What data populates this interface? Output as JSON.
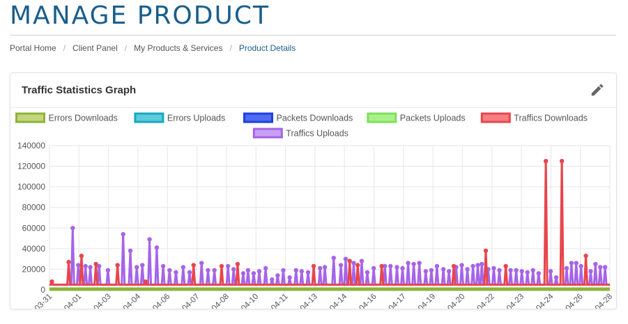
{
  "header": {
    "title": "MANAGE PRODUCT"
  },
  "breadcrumb": {
    "items": [
      {
        "label": "Portal Home"
      },
      {
        "label": "Client Panel"
      },
      {
        "label": "My Products & Services"
      },
      {
        "label": "Product Details"
      }
    ]
  },
  "card": {
    "title": "Traffic Statistics Graph",
    "edit_icon": "pencil-icon"
  },
  "colors": {
    "title": "#1a5e8c",
    "grid": "#e6e6e6"
  },
  "chart_data": {
    "type": "line",
    "grid": true,
    "legend_position": "top",
    "ylim": [
      0,
      140000
    ],
    "yticks": [
      0,
      20000,
      40000,
      60000,
      80000,
      100000,
      120000,
      140000
    ],
    "xticks": [
      "2019-03-31",
      "2019-04-01",
      "2019-04-03",
      "2019-04-04",
      "2019-04-06",
      "2019-04-07",
      "2019-04-08",
      "2019-04-10",
      "2019-04-11",
      "2019-04-13",
      "2019-04-14",
      "2019-04-16",
      "2019-04-17",
      "2019-04-19",
      "2019-04-20",
      "2019-04-22",
      "2019-04-23",
      "2019-04-24",
      "2019-04-26",
      "2019-04-28"
    ],
    "series": [
      {
        "name": "Errors Downloads",
        "color": "#8db33a",
        "fill": "#c3d67e",
        "values": "zero"
      },
      {
        "name": "Errors Uploads",
        "color": "#16a9c0",
        "fill": "#5ecbdb",
        "values": "zero"
      },
      {
        "name": "Packets Downloads",
        "color": "#1f3fe0",
        "fill": "#4f6cf0",
        "values": "zero"
      },
      {
        "name": "Packets Uploads",
        "color": "#7fe05a",
        "fill": "#a8f08a",
        "values": "zero"
      },
      {
        "name": "Traffics Downloads",
        "color": "#e8454d",
        "fill": "#f47f84",
        "values": [
          {
            "x": 0.3,
            "y": 8000
          },
          {
            "x": 2.4,
            "y": 27000
          },
          {
            "x": 4.0,
            "y": 33000
          },
          {
            "x": 5.8,
            "y": 25000
          },
          {
            "x": 8.5,
            "y": 24000
          },
          {
            "x": 12.0,
            "y": 8000
          },
          {
            "x": 18.0,
            "y": 24000
          },
          {
            "x": 21.5,
            "y": 23000
          },
          {
            "x": 23.5,
            "y": 25000
          },
          {
            "x": 33.0,
            "y": 23000
          },
          {
            "x": 37.5,
            "y": 28000
          },
          {
            "x": 38.5,
            "y": 24000
          },
          {
            "x": 41.5,
            "y": 23000
          },
          {
            "x": 50.5,
            "y": 23000
          },
          {
            "x": 54.5,
            "y": 38000
          },
          {
            "x": 57.0,
            "y": 23000
          },
          {
            "x": 62.0,
            "y": 125000
          },
          {
            "x": 64.0,
            "y": 125000
          },
          {
            "x": 67.0,
            "y": 33000
          }
        ]
      },
      {
        "name": "Traffics Uploads",
        "color": "#a664e8",
        "fill": "#c7a2f2",
        "values": [
          {
            "x": 2.9,
            "y": 60000
          },
          {
            "x": 3.6,
            "y": 24000
          },
          {
            "x": 4.5,
            "y": 23000
          },
          {
            "x": 5.1,
            "y": 22000
          },
          {
            "x": 6.2,
            "y": 23000
          },
          {
            "x": 7.3,
            "y": 19000
          },
          {
            "x": 9.2,
            "y": 54000
          },
          {
            "x": 10.1,
            "y": 38000
          },
          {
            "x": 10.9,
            "y": 22000
          },
          {
            "x": 11.6,
            "y": 24000
          },
          {
            "x": 12.5,
            "y": 49000
          },
          {
            "x": 13.4,
            "y": 41000
          },
          {
            "x": 14.2,
            "y": 23000
          },
          {
            "x": 15.0,
            "y": 19000
          },
          {
            "x": 15.8,
            "y": 17000
          },
          {
            "x": 16.7,
            "y": 22000
          },
          {
            "x": 17.5,
            "y": 17000
          },
          {
            "x": 19.0,
            "y": 26000
          },
          {
            "x": 19.8,
            "y": 19000
          },
          {
            "x": 20.6,
            "y": 19000
          },
          {
            "x": 22.3,
            "y": 23000
          },
          {
            "x": 23.0,
            "y": 20000
          },
          {
            "x": 24.2,
            "y": 16000
          },
          {
            "x": 24.8,
            "y": 19000
          },
          {
            "x": 25.5,
            "y": 16000
          },
          {
            "x": 26.2,
            "y": 18000
          },
          {
            "x": 27.0,
            "y": 21000
          },
          {
            "x": 27.8,
            "y": 10000
          },
          {
            "x": 28.5,
            "y": 14000
          },
          {
            "x": 29.2,
            "y": 19000
          },
          {
            "x": 30.0,
            "y": 12000
          },
          {
            "x": 30.8,
            "y": 19000
          },
          {
            "x": 31.5,
            "y": 18000
          },
          {
            "x": 32.3,
            "y": 17000
          },
          {
            "x": 33.8,
            "y": 21000
          },
          {
            "x": 34.4,
            "y": 22000
          },
          {
            "x": 35.5,
            "y": 31000
          },
          {
            "x": 36.4,
            "y": 24000
          },
          {
            "x": 37.0,
            "y": 30000
          },
          {
            "x": 38.0,
            "y": 26000
          },
          {
            "x": 39.0,
            "y": 28000
          },
          {
            "x": 39.7,
            "y": 17000
          },
          {
            "x": 40.5,
            "y": 21000
          },
          {
            "x": 41.9,
            "y": 23000
          },
          {
            "x": 42.6,
            "y": 23000
          },
          {
            "x": 43.4,
            "y": 22000
          },
          {
            "x": 44.1,
            "y": 21000
          },
          {
            "x": 44.8,
            "y": 26000
          },
          {
            "x": 45.5,
            "y": 25000
          },
          {
            "x": 46.2,
            "y": 26000
          },
          {
            "x": 47.0,
            "y": 18000
          },
          {
            "x": 47.7,
            "y": 19000
          },
          {
            "x": 48.4,
            "y": 23000
          },
          {
            "x": 49.2,
            "y": 20000
          },
          {
            "x": 49.9,
            "y": 18000
          },
          {
            "x": 50.8,
            "y": 22000
          },
          {
            "x": 51.5,
            "y": 24000
          },
          {
            "x": 52.2,
            "y": 20000
          },
          {
            "x": 52.9,
            "y": 23000
          },
          {
            "x": 53.5,
            "y": 24000
          },
          {
            "x": 54.0,
            "y": 25000
          },
          {
            "x": 54.8,
            "y": 20000
          },
          {
            "x": 55.5,
            "y": 21000
          },
          {
            "x": 56.2,
            "y": 19000
          },
          {
            "x": 57.6,
            "y": 19000
          },
          {
            "x": 58.3,
            "y": 19000
          },
          {
            "x": 59.0,
            "y": 18000
          },
          {
            "x": 59.7,
            "y": 17000
          },
          {
            "x": 60.4,
            "y": 19000
          },
          {
            "x": 61.1,
            "y": 16000
          },
          {
            "x": 62.6,
            "y": 18000
          },
          {
            "x": 63.3,
            "y": 12000
          },
          {
            "x": 64.6,
            "y": 21000
          },
          {
            "x": 65.2,
            "y": 26000
          },
          {
            "x": 65.8,
            "y": 26000
          },
          {
            "x": 66.4,
            "y": 23000
          },
          {
            "x": 67.6,
            "y": 18000
          },
          {
            "x": 68.2,
            "y": 25000
          },
          {
            "x": 68.8,
            "y": 22000
          },
          {
            "x": 69.4,
            "y": 22000
          }
        ]
      }
    ]
  }
}
